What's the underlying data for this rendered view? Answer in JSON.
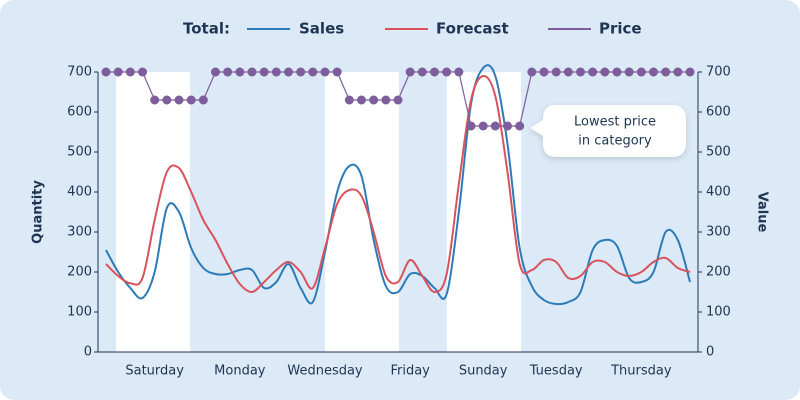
{
  "chart_data": {
    "type": "line",
    "legend_title": "Total:",
    "y_label": "Quantity",
    "y2_label": "Value",
    "annotation": [
      "Lowest price",
      "in category"
    ],
    "categories": [
      null,
      null,
      null,
      null,
      "Saturday",
      null,
      null,
      null,
      null,
      null,
      null,
      "Monday",
      null,
      null,
      null,
      null,
      null,
      null,
      "Wednesday",
      null,
      null,
      null,
      null,
      null,
      null,
      "Friday",
      null,
      null,
      null,
      null,
      null,
      "Sunday",
      null,
      null,
      null,
      null,
      null,
      "Tuesday",
      null,
      null,
      null,
      null,
      null,
      null,
      "Thursday",
      null,
      null,
      null,
      null
    ],
    "ylim": [
      0,
      700
    ],
    "yticks": [
      0,
      100,
      200,
      300,
      400,
      500,
      600,
      700
    ],
    "y2lim": [
      0,
      700
    ],
    "y2ticks": [
      0,
      100,
      200,
      300,
      400,
      500,
      600,
      700
    ],
    "series": [
      {
        "name": "Sales",
        "color": "#2b7bb9",
        "values": [
          255,
          200,
          160,
          135,
          200,
          360,
          350,
          260,
          210,
          195,
          195,
          205,
          205,
          160,
          175,
          220,
          160,
          125,
          250,
          400,
          465,
          440,
          280,
          165,
          150,
          195,
          190,
          160,
          145,
          350,
          620,
          710,
          690,
          520,
          260,
          165,
          130,
          120,
          125,
          150,
          255,
          280,
          265,
          185,
          175,
          200,
          300,
          280,
          175
        ]
      },
      {
        "name": "Forecast",
        "color": "#d9535c",
        "values": [
          220,
          190,
          172,
          185,
          330,
          450,
          460,
          400,
          330,
          280,
          220,
          170,
          150,
          175,
          205,
          225,
          200,
          160,
          260,
          370,
          405,
          390,
          300,
          190,
          175,
          230,
          190,
          150,
          195,
          420,
          630,
          690,
          640,
          450,
          220,
          205,
          230,
          225,
          185,
          190,
          225,
          225,
          200,
          190,
          200,
          225,
          235,
          210,
          200
        ]
      },
      {
        "name": "Price",
        "color": "#7d5d9b",
        "axis": "y2",
        "markers": true,
        "values": [
          700,
          700,
          700,
          700,
          630,
          630,
          630,
          630,
          630,
          700,
          700,
          700,
          700,
          700,
          700,
          700,
          700,
          700,
          700,
          700,
          630,
          630,
          630,
          630,
          630,
          700,
          700,
          700,
          700,
          700,
          565,
          565,
          565,
          565,
          565,
          700,
          700,
          700,
          700,
          700,
          700,
          700,
          700,
          700,
          700,
          700,
          700,
          700,
          700
        ]
      }
    ]
  }
}
